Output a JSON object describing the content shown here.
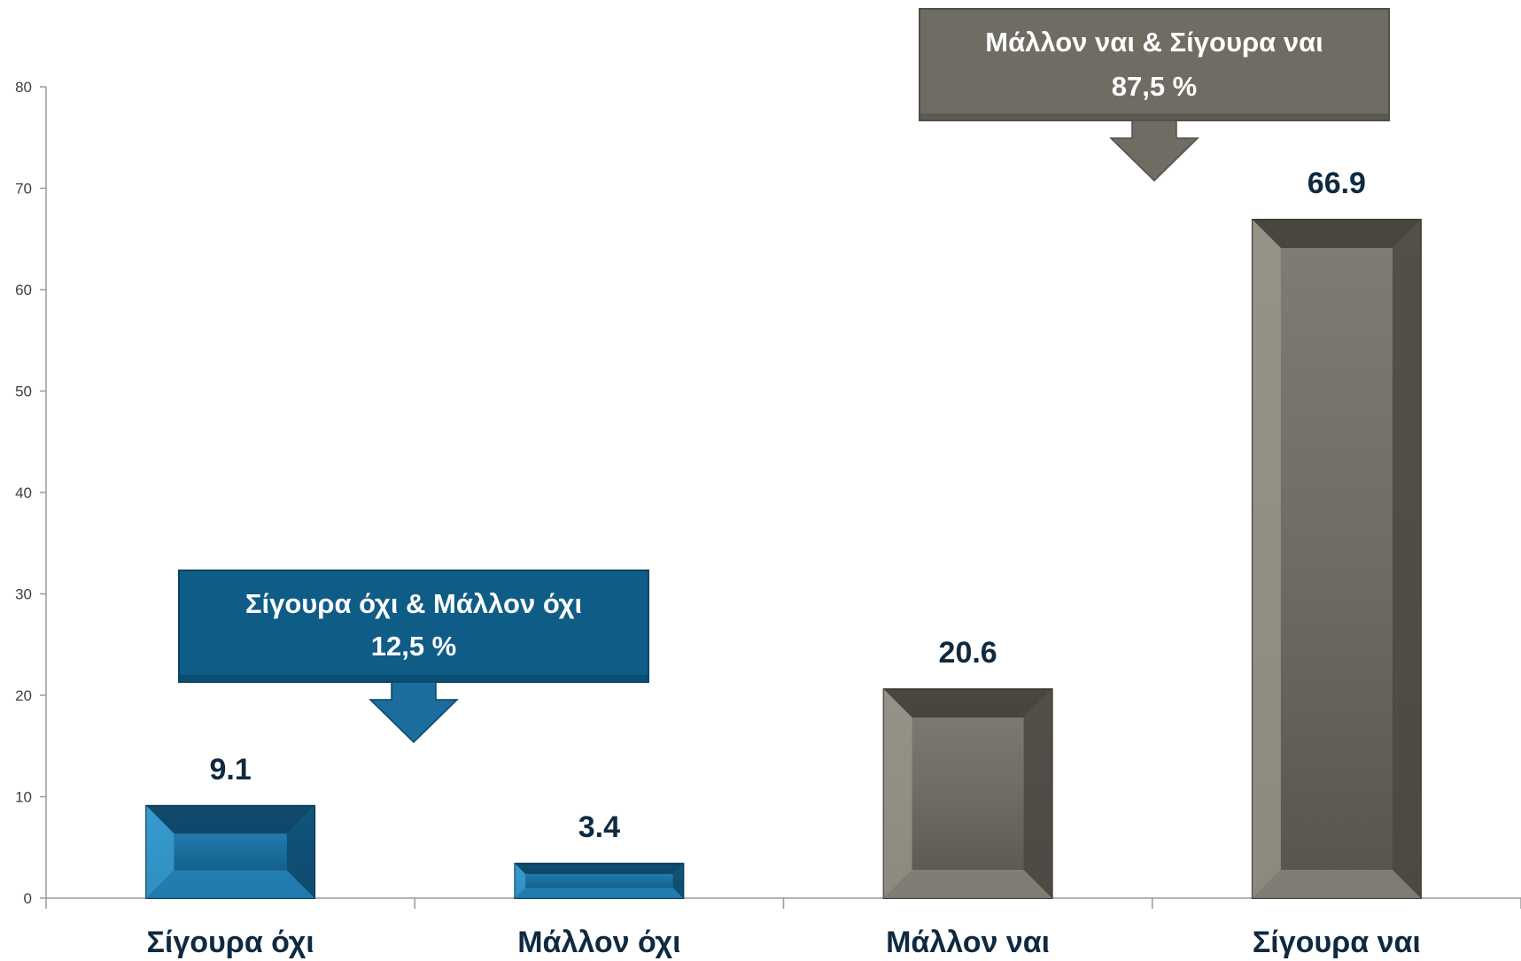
{
  "chart_data": {
    "type": "bar",
    "categories": [
      "Σίγουρα όχι",
      "Μάλλον όχι",
      "Μάλλον ναι",
      "Σίγουρα ναι"
    ],
    "values": [
      9.1,
      3.4,
      20.6,
      66.9
    ],
    "data_labels": [
      "9.1",
      "3.4",
      "20.6",
      "66.9"
    ],
    "title": "",
    "xlabel": "",
    "ylabel": "",
    "ylim": [
      0,
      80
    ],
    "yticks": [
      "0",
      "10",
      "20",
      "30",
      "40",
      "50",
      "60",
      "70",
      "80"
    ],
    "grid": false,
    "legend": "none",
    "bar_colors": [
      "#1a6d9c",
      "#1a6d9c",
      "#6f6d63",
      "#6f6d63"
    ],
    "annotations": [
      {
        "line1": "Σίγουρα όχι & Μάλλον όχι",
        "line2": "12,5 %",
        "color": "#0f5c87",
        "points_to": "Σίγουρα όχι, Μάλλον όχι"
      },
      {
        "line1": "Μάλλον ναι & Σίγουρα ναι",
        "line2": "87,5 %",
        "color": "#6f6d63",
        "points_to": "Μάλλον ναι, Σίγουρα ναι"
      }
    ]
  }
}
